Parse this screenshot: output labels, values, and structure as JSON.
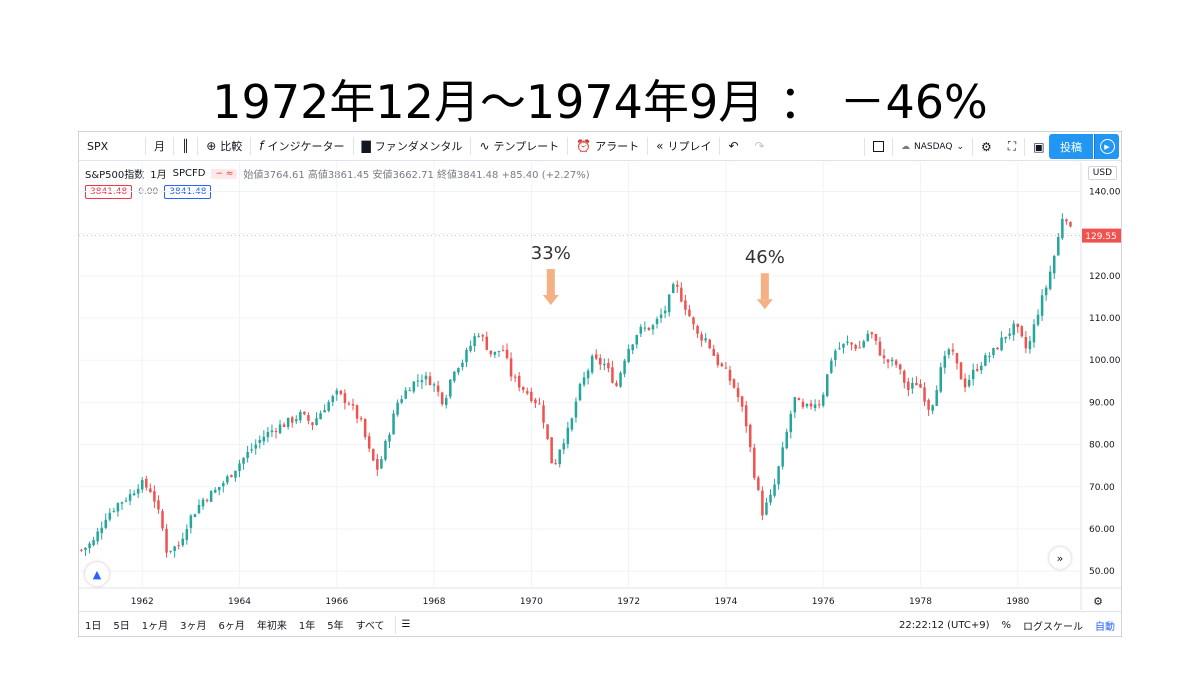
{
  "slide_title": "1972年12月～1974年9月 ： －46%",
  "toolbar": {
    "symbol": "SPX",
    "interval": "月",
    "compare": "比較",
    "indicators": "インジケーター",
    "fundamentals": "ファンダメンタル",
    "templates": "テンプレート",
    "alerts": "アラート",
    "replay": "リプレイ",
    "exchange": "NASDAQ",
    "post": "投稿"
  },
  "legend": {
    "name": "S&P500指数",
    "interval": "1月",
    "source": "SPCFD",
    "ohlc": "始値3764.61 高値3861.45 安値3662.71 終値3841.48 +85.40 (+2.27%)",
    "bid": "3841.48",
    "spread": "0.00",
    "ask": "3841.48"
  },
  "currency": "USD",
  "bottombar": {
    "ranges": [
      "1日",
      "5日",
      "1ヶ月",
      "3ヶ月",
      "6ヶ月",
      "年初来",
      "1年",
      "5年",
      "すべて"
    ],
    "time": "22:22:12 (UTC+9)",
    "percent": "%",
    "log": "ログスケール",
    "auto": "自動"
  },
  "icons": {
    "candles": "candlestick-icon",
    "compare": "plus-circle-icon",
    "indicators": "fx-icon",
    "fundamentals": "bar-chart-icon",
    "templates": "template-icon",
    "alerts": "alarm-clock-icon",
    "replay": "rewind-icon",
    "undo": "undo-icon",
    "redo": "redo-icon",
    "settings": "gear-icon",
    "fullscreen": "fullscreen-icon",
    "snapshot": "camera-icon",
    "goto": "calendar-goto-icon"
  },
  "colors": {
    "up": "#26a69a",
    "down": "#ef5350",
    "arrow": "#f4b183",
    "price_label": "#ef5350"
  },
  "chart_data": {
    "type": "candlestick",
    "title": "",
    "xlabel": "",
    "ylabel": "",
    "x_ticks": [
      "1962",
      "1964",
      "1966",
      "1968",
      "1970",
      "1972",
      "1974",
      "1976",
      "1978",
      "1980"
    ],
    "y_ticks": [
      "140.00",
      "130.00",
      "120.00",
      "110.00",
      "100.00",
      "90.00",
      "80.00",
      "70.00",
      "60.00",
      "50.00"
    ],
    "ylim": [
      46,
      147
    ],
    "xlim": [
      1960.7,
      1981.3
    ],
    "last_price_label": "129.55",
    "grid": true,
    "annotations": [
      {
        "text": "33%",
        "x": 1970.4,
        "y": 110
      },
      {
        "text": "46%",
        "x": 1974.8,
        "y": 109
      }
    ],
    "series": [
      {
        "name": "close",
        "values": [
          [
            1960.75,
            55
          ],
          [
            1961.0,
            57
          ],
          [
            1961.25,
            63
          ],
          [
            1961.5,
            66
          ],
          [
            1961.75,
            68
          ],
          [
            1961.95,
            71
          ],
          [
            1962.2,
            69
          ],
          [
            1962.4,
            61
          ],
          [
            1962.5,
            55
          ],
          [
            1962.75,
            56
          ],
          [
            1962.95,
            62
          ],
          [
            1963.25,
            67
          ],
          [
            1963.5,
            69
          ],
          [
            1963.75,
            72
          ],
          [
            1963.95,
            75
          ],
          [
            1964.25,
            79
          ],
          [
            1964.5,
            82
          ],
          [
            1964.75,
            84
          ],
          [
            1964.95,
            85
          ],
          [
            1965.25,
            87
          ],
          [
            1965.5,
            85
          ],
          [
            1965.75,
            89
          ],
          [
            1966.0,
            92
          ],
          [
            1966.25,
            90
          ],
          [
            1966.5,
            85
          ],
          [
            1966.7,
            77
          ],
          [
            1966.85,
            74
          ],
          [
            1967.0,
            80
          ],
          [
            1967.25,
            90
          ],
          [
            1967.5,
            94
          ],
          [
            1967.75,
            96
          ],
          [
            1967.95,
            95
          ],
          [
            1968.2,
            90
          ],
          [
            1968.4,
            98
          ],
          [
            1968.6,
            100
          ],
          [
            1968.9,
            107
          ],
          [
            1969.2,
            101
          ],
          [
            1969.4,
            103
          ],
          [
            1969.6,
            96
          ],
          [
            1969.95,
            92
          ],
          [
            1970.2,
            89
          ],
          [
            1970.35,
            80
          ],
          [
            1970.45,
            74
          ],
          [
            1970.6,
            80
          ],
          [
            1970.8,
            84
          ],
          [
            1970.95,
            92
          ],
          [
            1971.25,
            100
          ],
          [
            1971.5,
            99
          ],
          [
            1971.75,
            94
          ],
          [
            1971.95,
            102
          ],
          [
            1972.2,
            107
          ],
          [
            1972.5,
            108
          ],
          [
            1972.75,
            112
          ],
          [
            1972.95,
            118
          ],
          [
            1973.2,
            112
          ],
          [
            1973.4,
            106
          ],
          [
            1973.6,
            105
          ],
          [
            1973.8,
            100
          ],
          [
            1974.0,
            97
          ],
          [
            1974.2,
            93
          ],
          [
            1974.4,
            86
          ],
          [
            1974.6,
            72
          ],
          [
            1974.75,
            64
          ],
          [
            1974.95,
            68
          ],
          [
            1975.2,
            80
          ],
          [
            1975.4,
            91
          ],
          [
            1975.6,
            88
          ],
          [
            1975.8,
            90
          ],
          [
            1975.95,
            90
          ],
          [
            1976.2,
            102
          ],
          [
            1976.5,
            104
          ],
          [
            1976.75,
            103
          ],
          [
            1976.95,
            107
          ],
          [
            1977.25,
            100
          ],
          [
            1977.5,
            99
          ],
          [
            1977.75,
            93
          ],
          [
            1977.95,
            95
          ],
          [
            1978.2,
            88
          ],
          [
            1978.4,
            97
          ],
          [
            1978.6,
            103
          ],
          [
            1978.9,
            94
          ],
          [
            1979.2,
            99
          ],
          [
            1979.5,
            102
          ],
          [
            1979.75,
            106
          ],
          [
            1979.95,
            108
          ],
          [
            1980.2,
            102
          ],
          [
            1980.4,
            111
          ],
          [
            1980.6,
            118
          ],
          [
            1980.8,
            127
          ],
          [
            1980.95,
            136
          ],
          [
            1981.1,
            130
          ]
        ]
      }
    ]
  }
}
